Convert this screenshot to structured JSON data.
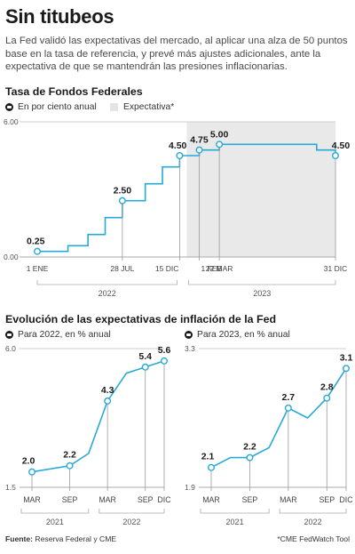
{
  "header": {
    "title": "Sin titubeos",
    "subtitle": "La Fed validó las expectativas del mercado, al aplicar una alza de 50 puntos base en la tasa de referencia, y prevé más ajustes adicionales, ante la expectativa de que se mantendrán las presiones inflacionarias."
  },
  "colors": {
    "accent": "#29a9d6",
    "dark": "#1a1a1a",
    "shade": "#e9e9e9"
  },
  "chart_data": [
    {
      "type": "line",
      "title": "Tasa de Fondos Federales",
      "legend": {
        "series_label": "En por ciento anual",
        "shade_label": "Expectativa*"
      },
      "ylim": [
        0,
        6
      ],
      "y_ticks": [
        "0.00",
        "6.00"
      ],
      "step": true,
      "x_tick_labels": [
        "1 ENE",
        "28 JUL",
        "15 DIC",
        "1 FEB",
        "22 MAR",
        "31 DIC"
      ],
      "year_labels": [
        "2022",
        "2023"
      ],
      "points": [
        {
          "x": "2022-01-01",
          "y": 0.25
        },
        {
          "x": "2022-03-17",
          "y": 0.5
        },
        {
          "x": "2022-05-05",
          "y": 1.0
        },
        {
          "x": "2022-06-16",
          "y": 1.75
        },
        {
          "x": "2022-07-28",
          "y": 2.5
        },
        {
          "x": "2022-09-22",
          "y": 3.25
        },
        {
          "x": "2022-11-03",
          "y": 4.0
        },
        {
          "x": "2022-12-15",
          "y": 4.5
        },
        {
          "x": "2023-02-01",
          "y": 4.75
        },
        {
          "x": "2023-03-22",
          "y": 5.0
        },
        {
          "x": "2023-11-15",
          "y": 4.75
        },
        {
          "x": "2023-12-31",
          "y": 4.5
        }
      ],
      "shaded_range": [
        "2022-12-15",
        "2023-12-31"
      ],
      "labels": [
        {
          "x": "2022-01-01",
          "y": 0.25,
          "text": "0.25"
        },
        {
          "x": "2022-07-28",
          "y": 2.5,
          "text": "2.50"
        },
        {
          "x": "2022-12-15",
          "y": 4.5,
          "text": "4.50"
        },
        {
          "x": "2023-02-01",
          "y": 4.75,
          "text": "4.75"
        },
        {
          "x": "2023-03-22",
          "y": 5.0,
          "text": "5.00"
        },
        {
          "x": "2023-12-31",
          "y": 4.5,
          "text": "4.50"
        }
      ]
    },
    {
      "type": "line",
      "title": "Para 2022, en % anual",
      "ylim": [
        1.5,
        6.0
      ],
      "y_ticks": [
        "1.5",
        "6.0"
      ],
      "x_tick_labels": [
        "MAR",
        "SEP",
        "MAR",
        "SEP",
        "DIC"
      ],
      "year_labels": [
        "2021",
        "2022"
      ],
      "points": [
        {
          "x": "2021-03",
          "y": 2.0
        },
        {
          "x": "2021-09",
          "y": 2.2
        },
        {
          "x": "2021-12",
          "y": 2.6
        },
        {
          "x": "2022-03",
          "y": 4.3
        },
        {
          "x": "2022-06",
          "y": 5.2
        },
        {
          "x": "2022-09",
          "y": 5.4
        },
        {
          "x": "2022-12",
          "y": 5.6
        }
      ],
      "labels": [
        {
          "x": "2021-03",
          "y": 2.0,
          "text": "2.0"
        },
        {
          "x": "2021-09",
          "y": 2.2,
          "text": "2.2"
        },
        {
          "x": "2022-03",
          "y": 4.3,
          "text": "4.3"
        },
        {
          "x": "2022-09",
          "y": 5.4,
          "text": "5.4"
        },
        {
          "x": "2022-12",
          "y": 5.6,
          "text": "5.6"
        }
      ]
    },
    {
      "type": "line",
      "title": "Para 2023, en % anual",
      "ylim": [
        1.9,
        3.3
      ],
      "y_ticks": [
        "1.9",
        "3.3"
      ],
      "x_tick_labels": [
        "MAR",
        "SEP",
        "MAR",
        "SEP",
        "DIC"
      ],
      "year_labels": [
        "2021",
        "2022"
      ],
      "points": [
        {
          "x": "2021-03",
          "y": 2.1
        },
        {
          "x": "2021-06",
          "y": 2.2
        },
        {
          "x": "2021-09",
          "y": 2.2
        },
        {
          "x": "2021-12",
          "y": 2.3
        },
        {
          "x": "2022-03",
          "y": 2.7
        },
        {
          "x": "2022-06",
          "y": 2.6
        },
        {
          "x": "2022-09",
          "y": 2.8
        },
        {
          "x": "2022-12",
          "y": 3.1
        }
      ],
      "labels": [
        {
          "x": "2021-03",
          "y": 2.1,
          "text": "2.1"
        },
        {
          "x": "2021-09",
          "y": 2.2,
          "text": "2.2"
        },
        {
          "x": "2022-03",
          "y": 2.7,
          "text": "2.7"
        },
        {
          "x": "2022-09",
          "y": 2.8,
          "text": "2.8"
        },
        {
          "x": "2022-12",
          "y": 3.1,
          "text": "3.1"
        }
      ]
    }
  ],
  "inflation_section": {
    "title": "Evolución de las expectativas de inflación de la Fed"
  },
  "footer": {
    "source_label": "Fuente:",
    "source": "Reserva Federal y CME",
    "note": "*CME FedWatch Tool"
  }
}
